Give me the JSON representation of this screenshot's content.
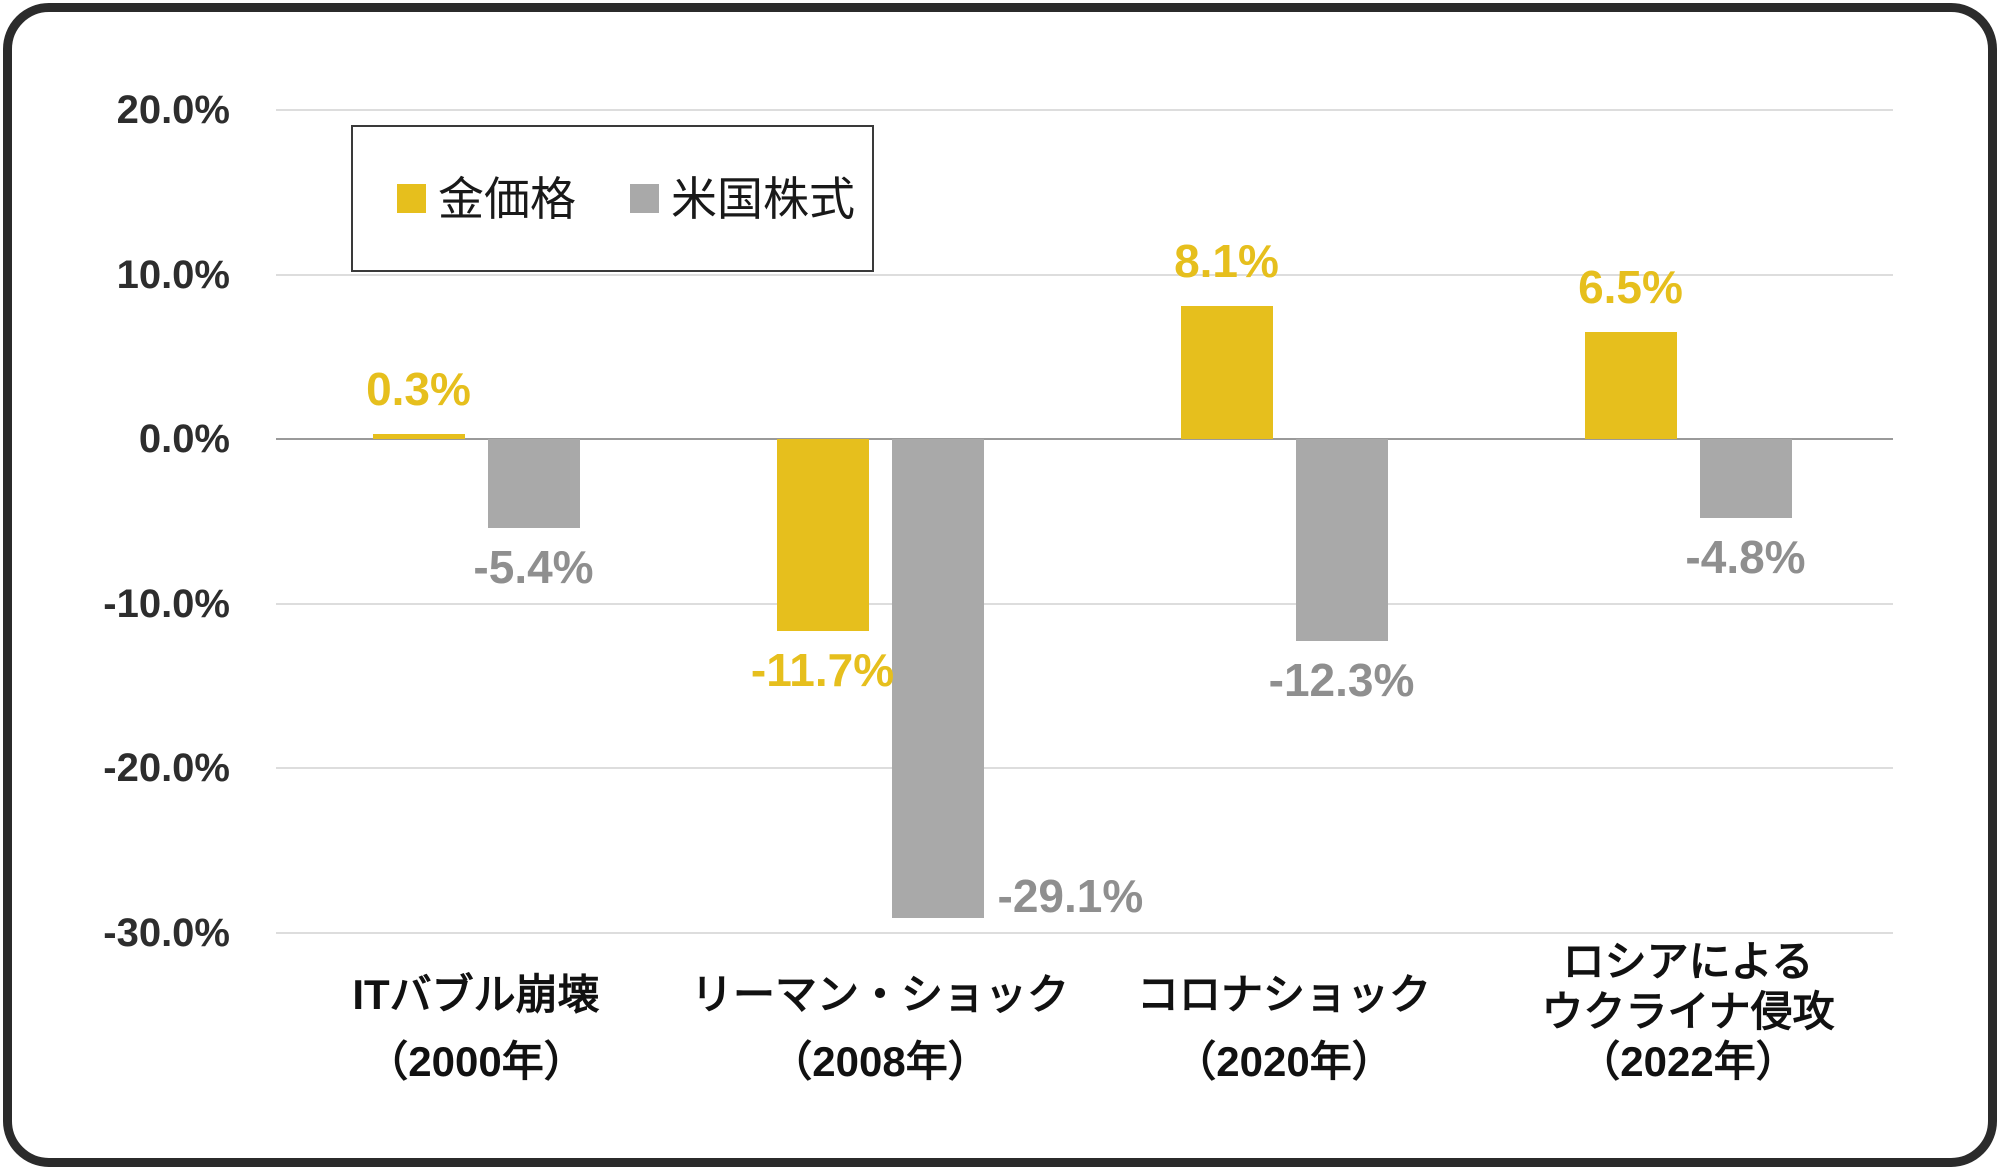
{
  "chart_data": {
    "type": "bar",
    "title": "",
    "categories": [
      {
        "name_lines": [
          "ITバブル崩壊"
        ],
        "year": "（2000年）"
      },
      {
        "name_lines": [
          "リーマン・ショック"
        ],
        "year": "（2008年）"
      },
      {
        "name_lines": [
          "コロナショック"
        ],
        "year": "（2020年）"
      },
      {
        "name_lines": [
          "ロシアによる",
          "ウクライナ侵攻"
        ],
        "year": "（2022年）"
      }
    ],
    "series": [
      {
        "name": "金価格",
        "color": "#e6bf1d",
        "label_color": "#e6bf1d",
        "values": [
          0.3,
          -11.7,
          8.1,
          6.5
        ],
        "value_labels": [
          "0.3%",
          "-11.7%",
          "8.1%",
          "6.5%"
        ]
      },
      {
        "name": "米国株式",
        "color": "#a9a9a9",
        "label_color": "#8f8f8f",
        "values": [
          -5.4,
          -29.1,
          -12.3,
          -4.8
        ],
        "value_labels": [
          "-5.4%",
          "-29.1%",
          "-12.3%",
          "-4.8%"
        ]
      }
    ],
    "y_axis": {
      "tick_labels": [
        "20.0%",
        "10.0%",
        "0.0%",
        "-10.0%",
        "-20.0%",
        "-30.0%"
      ],
      "tick_values": [
        20,
        10,
        0,
        -10,
        -20,
        -30
      ],
      "min": -30,
      "max": 20,
      "unit": "%",
      "grid": true
    },
    "legend_position": "top-left"
  },
  "colors": {
    "gold": "#e6bf1d",
    "gray": "#a9a9a9",
    "grid_line": "#dddddd",
    "zero_line": "#9a9a9a",
    "axis_text": "#2d2d2d",
    "category_text": "#111111",
    "gray_label_text": "#8f8f8f",
    "frame_border": "#2b2b2b",
    "background": "#ffffff"
  }
}
